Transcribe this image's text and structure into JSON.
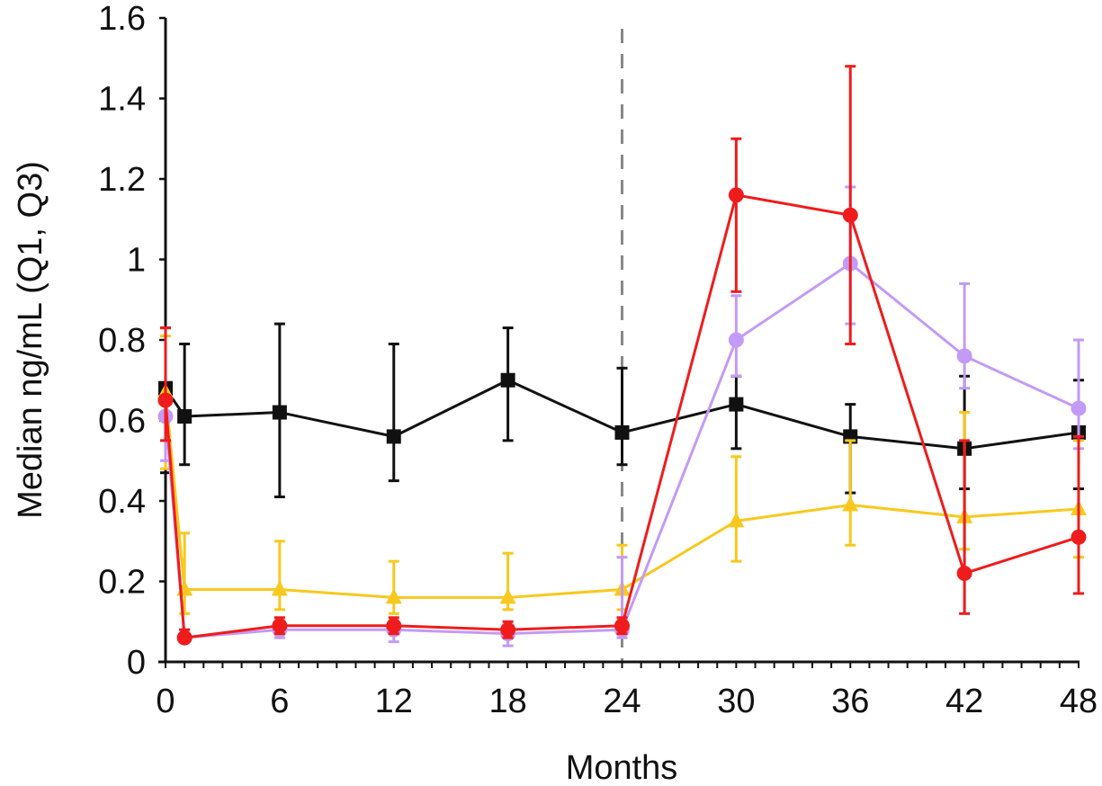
{
  "chart_data": {
    "type": "line",
    "title": "",
    "xlabel": "Months",
    "ylabel": "Median ng/mL (Q1, Q3)",
    "xlim": [
      0,
      48
    ],
    "ylim": [
      0,
      1.6
    ],
    "x_major_ticks": [
      0,
      6,
      12,
      18,
      24,
      30,
      36,
      42,
      48
    ],
    "x_tick_labels": [
      "0",
      "6",
      "12",
      "18",
      "24",
      "30",
      "36",
      "42",
      "48"
    ],
    "x_minor_tick_step": 1,
    "y_ticks": [
      0,
      0.2,
      0.4,
      0.6,
      0.8,
      1.0,
      1.2,
      1.4,
      1.6
    ],
    "y_tick_labels": [
      "0",
      "0.2",
      "0.4",
      "0.6",
      "0.8",
      "1",
      "1.2",
      "1.4",
      "1.6"
    ],
    "grid": false,
    "legend": "none",
    "reference_line": {
      "x": 24,
      "style": "dashed",
      "color": "#888888"
    },
    "x": [
      0,
      1,
      6,
      12,
      18,
      24,
      30,
      36,
      42,
      48
    ],
    "series": [
      {
        "name": "black-squares",
        "color": "#111111",
        "marker": "square",
        "values": [
          0.68,
          0.61,
          0.62,
          0.56,
          0.7,
          0.57,
          0.64,
          0.56,
          0.53,
          0.57
        ],
        "q1": [
          0.47,
          0.49,
          0.41,
          0.45,
          0.55,
          0.49,
          0.53,
          0.42,
          0.43,
          0.43
        ],
        "q3": [
          0.83,
          0.79,
          0.84,
          0.79,
          0.83,
          0.73,
          0.71,
          0.64,
          0.71,
          0.7
        ]
      },
      {
        "name": "yellow-triangles",
        "color": "#f7c81e",
        "marker": "triangle",
        "values": [
          0.67,
          0.18,
          0.18,
          0.16,
          0.16,
          0.18,
          0.35,
          0.39,
          0.36,
          0.38
        ],
        "q1": [
          0.48,
          0.12,
          0.13,
          0.12,
          0.13,
          0.13,
          0.25,
          0.29,
          0.28,
          0.26
        ],
        "q3": [
          0.81,
          0.32,
          0.3,
          0.25,
          0.27,
          0.29,
          0.51,
          0.55,
          0.62,
          0.55
        ]
      },
      {
        "name": "purple-circles",
        "color": "#c39af5",
        "marker": "circle",
        "values": [
          0.61,
          0.06,
          0.08,
          0.08,
          0.07,
          0.08,
          0.8,
          0.99,
          0.76,
          0.63
        ],
        "q1": [
          0.5,
          0.05,
          0.06,
          0.05,
          0.04,
          0.06,
          0.71,
          0.84,
          0.68,
          0.53
        ],
        "q3": [
          0.65,
          0.08,
          0.1,
          0.1,
          0.09,
          0.26,
          0.91,
          1.18,
          0.94,
          0.8
        ]
      },
      {
        "name": "red-circles",
        "color": "#ee1c1c",
        "marker": "circle",
        "values": [
          0.65,
          0.06,
          0.09,
          0.09,
          0.08,
          0.09,
          1.16,
          1.11,
          0.22,
          0.31
        ],
        "q1": [
          0.55,
          0.05,
          0.07,
          0.07,
          0.06,
          0.07,
          0.92,
          0.79,
          0.12,
          0.17
        ],
        "q3": [
          0.83,
          0.08,
          0.11,
          0.11,
          0.1,
          0.11,
          1.3,
          1.48,
          0.55,
          0.56
        ]
      }
    ]
  }
}
